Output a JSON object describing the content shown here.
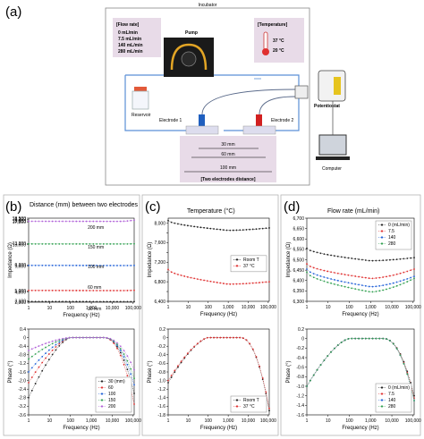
{
  "setup": {
    "panel_label": "(a)",
    "incubator_label": "Incubator",
    "flow_rate": {
      "title": "[Flow rate]",
      "lines": [
        "0    mL/min",
        "7.5  mL/min",
        "140 mL/min",
        "280 mL/min"
      ]
    },
    "temperature": {
      "title": "[Temperature]",
      "lines": [
        "37 °C",
        "20 °C"
      ]
    },
    "pump_label": "Pump",
    "reservoir_label": "Reservoir",
    "electrode1_label": "Electrode 1",
    "electrode2_label": "Electrode 2",
    "potentiostat_label": "Potentiostat",
    "potentiostat_screen_text": "Potentiostat\nGalvanostat",
    "computer_label": "Computer",
    "distances": [
      "30 mm",
      "60 mm",
      "100 mm"
    ],
    "distance_title": "[Two electrodes distance]",
    "colors": {
      "incubator_border": "#5b8fd6",
      "labelbox": "#e8dbe8",
      "pump_tube": "#e3a525",
      "electrode1": "#1f5fbf",
      "electrode2": "#d22020",
      "reservoir_cap": "#e25a3a"
    }
  },
  "chart_data": [
    {
      "id": "b",
      "panel_label": "(b)",
      "title": "Distance (mm) between two electrodes",
      "type": "line",
      "top": {
        "xlabel": "Frequency (Hz)",
        "ylabel": "Impedance (Ω)",
        "xscale": "log",
        "xticks": [
          1,
          10,
          100,
          1000,
          10000,
          100000
        ],
        "xtick_labels": [
          "1",
          "10",
          "100",
          "1,000",
          "10,000",
          "100,000"
        ],
        "ylim": [
          2900,
          18500
        ],
        "yticks": [
          2900,
          3100,
          4800,
          5000,
          9600,
          9800,
          13600,
          13800,
          17800,
          18000,
          18300,
          18500
        ],
        "ytick_labels": [
          "2,900",
          "3,100",
          "4,800",
          "5,000",
          "9,600",
          "9,800",
          "13,600",
          "13,800",
          "17,800",
          "18,000",
          "18,300",
          "18,500"
        ],
        "annotations": [
          "200 mm",
          "150 mm",
          "100 mm",
          "60 mm",
          "30 mm"
        ],
        "series": [
          {
            "name": "30",
            "color": "#222222",
            "start": 3.2,
            "end": 2.7,
            "up": 0.0
          },
          {
            "name": "60",
            "color": "#e03030",
            "start": 5.2,
            "end": 4.6,
            "up": 0.3
          },
          {
            "name": "100",
            "color": "#2060d8",
            "start": 8.3,
            "end": 7.7,
            "up": 0.1
          },
          {
            "name": "150",
            "color": "#30a050",
            "start": 10.4,
            "end": 10.1,
            "up": 0.2
          },
          {
            "name": "200",
            "color": "#b060d8",
            "start": 12.6,
            "end": 12.3,
            "up": 1.5
          }
        ]
      },
      "bottom": {
        "xlabel": "Frequency (Hz)",
        "ylabel": "Phase (°)",
        "xscale": "log",
        "xticks": [
          1,
          10,
          100,
          1000,
          10000,
          100000
        ],
        "xtick_labels": [
          "1",
          "10",
          "100",
          "1,000",
          "10,000",
          "100,000"
        ],
        "ylim": [
          -3.6,
          0.4
        ],
        "yticks": [
          0.4,
          0,
          -0.4,
          -0.8,
          -1.2,
          -1.6,
          -2.0,
          -2.4,
          -2.8,
          -3.2,
          -3.6
        ],
        "ytick_labels": [
          "0.4",
          "0",
          "-0.4",
          "-0.8",
          "-1.2",
          "-1.6",
          "-2.0",
          "-2.4",
          "-2.8",
          "-3.2",
          "-3.6"
        ],
        "legend_title": "30 (mm)",
        "legend": [
          "30 (mm)",
          "60",
          "100",
          "150",
          "200"
        ],
        "legend_position": "lower-right",
        "series": [
          {
            "name": "30",
            "color": "#222222",
            "left": -2.8,
            "right": -2.6
          },
          {
            "name": "60",
            "color": "#e03030",
            "left": -2.1,
            "right": -3.1
          },
          {
            "name": "100",
            "color": "#2060d8",
            "left": -1.6,
            "right": -2.2
          },
          {
            "name": "150",
            "color": "#30a050",
            "left": -1.0,
            "right": -1.9
          },
          {
            "name": "200",
            "color": "#b060d8",
            "left": -0.6,
            "right": -1.5
          }
        ]
      }
    },
    {
      "id": "c",
      "panel_label": "(c)",
      "title": "Temperature (°C)",
      "type": "line",
      "top": {
        "xlabel": "Frequency (Hz)",
        "ylabel": "Impedance (Ω)",
        "xscale": "log",
        "xticks": [
          1,
          10,
          100,
          1000,
          10000,
          100000
        ],
        "xtick_labels": [
          "1",
          "10",
          "100",
          "1,000",
          "10,000",
          "100,000"
        ],
        "ylim": [
          6400,
          8100
        ],
        "yticks": [
          6400,
          6600,
          6800,
          7000,
          7200,
          7400,
          7600,
          7800,
          8000
        ],
        "ytick_labels": [
          "6,400",
          "",
          "6,800",
          "",
          "7,200",
          "",
          "7,600",
          "",
          "8,000"
        ],
        "legend": [
          "Room T",
          "37 °C"
        ],
        "legend_position": "center-right",
        "series": [
          {
            "name": "Room T",
            "color": "#222222",
            "start": 8050,
            "low": 7850,
            "end": 7900
          },
          {
            "name": "37 °C",
            "color": "#e03030",
            "start": 7050,
            "low": 6750,
            "end": 6800
          }
        ]
      },
      "bottom": {
        "xlabel": "Frequency (Hz)",
        "ylabel": "Phase (°)",
        "xscale": "log",
        "xticks": [
          1,
          10,
          100,
          1000,
          10000,
          100000
        ],
        "xtick_labels": [
          "1",
          "10",
          "100",
          "1,000",
          "10,000",
          "100,000"
        ],
        "ylim": [
          -1.8,
          0.2
        ],
        "yticks": [
          0.2,
          0,
          -0.2,
          -0.4,
          -0.6,
          -0.8,
          -1.0,
          -1.2,
          -1.4,
          -1.6,
          -1.8
        ],
        "ytick_labels": [
          "0.2",
          "0",
          "-0.2",
          "-0.4",
          "-0.6",
          "-0.8",
          "-1.0",
          "-1.2",
          "-1.4",
          "-1.6",
          "-1.8"
        ],
        "legend": [
          "Room T",
          "37 °C"
        ],
        "legend_position": "lower-right",
        "series": [
          {
            "name": "Room T",
            "color": "#222222",
            "left": -1.05,
            "right": -1.7
          },
          {
            "name": "37 °C",
            "color": "#e03030",
            "left": -1.0,
            "right": -1.65
          }
        ]
      }
    },
    {
      "id": "d",
      "panel_label": "(d)",
      "title": "Flow rate (mL/min)",
      "type": "line",
      "top": {
        "xlabel": "Frequency (Hz)",
        "ylabel": "Impedance (Ω)",
        "xscale": "log",
        "xticks": [
          1,
          10,
          100,
          1000,
          10000,
          100000
        ],
        "xtick_labels": [
          "1",
          "10",
          "100",
          "1,000",
          "10,000",
          "100,000"
        ],
        "ylim": [
          6300,
          6700
        ],
        "yticks": [
          6300,
          6350,
          6400,
          6450,
          6500,
          6550,
          6600,
          6650,
          6700
        ],
        "ytick_labels": [
          "6,300",
          "6,350",
          "6,400",
          "6,450",
          "6,500",
          "6,550",
          "6,600",
          "6,650",
          "6,700"
        ],
        "legend": [
          "0 (mL/min)",
          "7.5",
          "140",
          "280"
        ],
        "legend_position": "top-right",
        "series": [
          {
            "name": "0",
            "color": "#222222",
            "start": 6555,
            "low": 6495,
            "end": 6510
          },
          {
            "name": "7.5",
            "color": "#e03030",
            "start": 6480,
            "low": 6410,
            "end": 6455
          },
          {
            "name": "140",
            "color": "#2060d8",
            "start": 6455,
            "low": 6370,
            "end": 6420
          },
          {
            "name": "280",
            "color": "#30a050",
            "start": 6440,
            "low": 6345,
            "end": 6410
          }
        ]
      },
      "bottom": {
        "xlabel": "Frequency (Hz)",
        "ylabel": "Phase (°)",
        "xscale": "log",
        "xticks": [
          1,
          10,
          100,
          1000,
          10000,
          100000
        ],
        "xtick_labels": [
          "1",
          "10",
          "100",
          "1,000",
          "10,000",
          "100,000"
        ],
        "ylim": [
          -1.6,
          0.2
        ],
        "yticks": [
          0.2,
          0,
          -0.2,
          -0.4,
          -0.6,
          -0.8,
          -1.0,
          -1.2,
          -1.4,
          -1.6
        ],
        "ytick_labels": [
          "0.2",
          "0",
          "-0.2",
          "-0.4",
          "-0.6",
          "-0.8",
          "-1.0",
          "-1.2",
          "-1.4",
          "-1.6"
        ],
        "legend": [
          "0 (mL/min)",
          "7.5",
          "140",
          "280"
        ],
        "legend_position": "lower-right",
        "series": [
          {
            "name": "0",
            "color": "#222222",
            "left": -1.0,
            "right": -1.2
          },
          {
            "name": "7.5",
            "color": "#e03030",
            "left": -1.0,
            "right": -1.25
          },
          {
            "name": "140",
            "color": "#2060d8",
            "left": -1.0,
            "right": -1.3
          },
          {
            "name": "280",
            "color": "#30a050",
            "left": -1.0,
            "right": -1.3
          }
        ]
      }
    }
  ]
}
